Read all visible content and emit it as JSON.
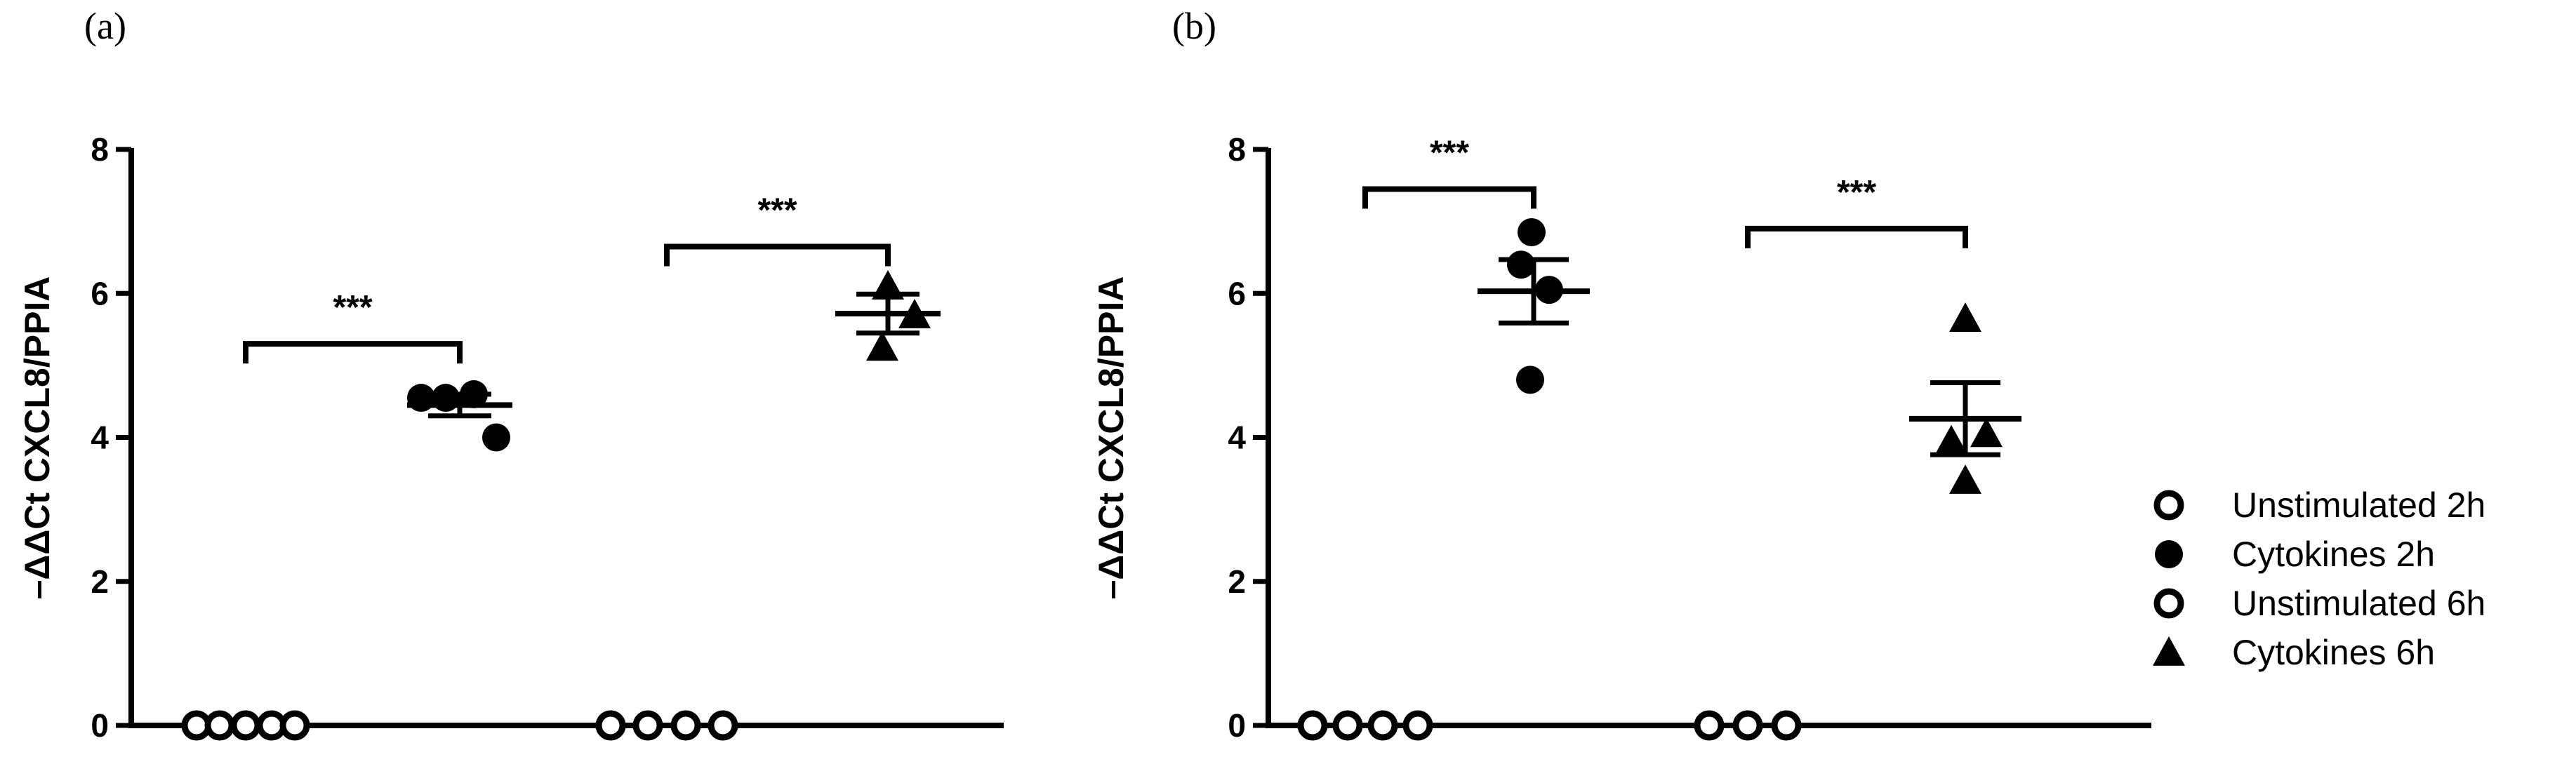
{
  "chart_data": [
    {
      "type": "scatter",
      "panel_label": "(a)",
      "ylabel": "–ΔΔCt CXCL8/PPIA",
      "ylim": [
        0,
        8
      ],
      "yticks": [
        "0",
        "2",
        "4",
        "6",
        "8"
      ],
      "groups": [
        {
          "series": "Unstimulated 2h",
          "marker": "open-circle",
          "values": [
            0,
            0,
            0,
            0,
            0
          ],
          "mean": 0,
          "sem": 0
        },
        {
          "series": "Cytokines 2h",
          "marker": "filled-circle",
          "values": [
            4.55,
            4.55,
            4.6,
            4.0
          ],
          "mean": 4.45,
          "sem": 0.15
        },
        {
          "series": "Unstimulated 6h",
          "marker": "open-circle",
          "values": [
            0,
            0,
            0,
            0
          ],
          "mean": 0,
          "sem": 0
        },
        {
          "series": "Cytokines 6h",
          "marker": "filled-triangle",
          "values": [
            6.1,
            5.7,
            5.25
          ],
          "mean": 5.72,
          "sem": 0.27
        }
      ],
      "comparisons": [
        {
          "from": 0,
          "to": 1,
          "label": "***",
          "y": 5.3
        },
        {
          "from": 2,
          "to": 3,
          "label": "***",
          "y": 6.65
        }
      ]
    },
    {
      "type": "scatter",
      "panel_label": "(b)",
      "ylabel": "–ΔΔCt CXCL8/PPIA",
      "ylim": [
        0,
        8
      ],
      "yticks": [
        "0",
        "2",
        "4",
        "6",
        "8"
      ],
      "groups": [
        {
          "series": "Unstimulated 2h",
          "marker": "open-circle",
          "values": [
            0,
            0,
            0,
            0
          ],
          "mean": 0,
          "sem": 0
        },
        {
          "series": "Cytokines 2h",
          "marker": "filled-circle",
          "values": [
            6.85,
            6.4,
            6.05,
            4.8
          ],
          "mean": 6.03,
          "sem": 0.44
        },
        {
          "series": "Unstimulated 6h",
          "marker": "open-circle",
          "values": [
            0,
            0,
            0
          ],
          "mean": 0,
          "sem": 0
        },
        {
          "series": "Cytokines 6h",
          "marker": "filled-triangle",
          "values": [
            5.65,
            4.05,
            3.95,
            3.4
          ],
          "mean": 4.26,
          "sem": 0.5
        }
      ],
      "comparisons": [
        {
          "from": 0,
          "to": 1,
          "label": "***",
          "y": 7.45
        },
        {
          "from": 2,
          "to": 3,
          "label": "***",
          "y": 6.9
        }
      ]
    }
  ],
  "legend": {
    "placement": "right",
    "items": [
      {
        "label": "Unstimulated 2h",
        "marker": "open-circle"
      },
      {
        "label": "Cytokines 2h",
        "marker": "filled-circle"
      },
      {
        "label": "Unstimulated 6h",
        "marker": "open-circle"
      },
      {
        "label": "Cytokines 6h",
        "marker": "filled-triangle"
      }
    ]
  },
  "colors": {
    "ink": "#000000",
    "background": "#ffffff"
  }
}
